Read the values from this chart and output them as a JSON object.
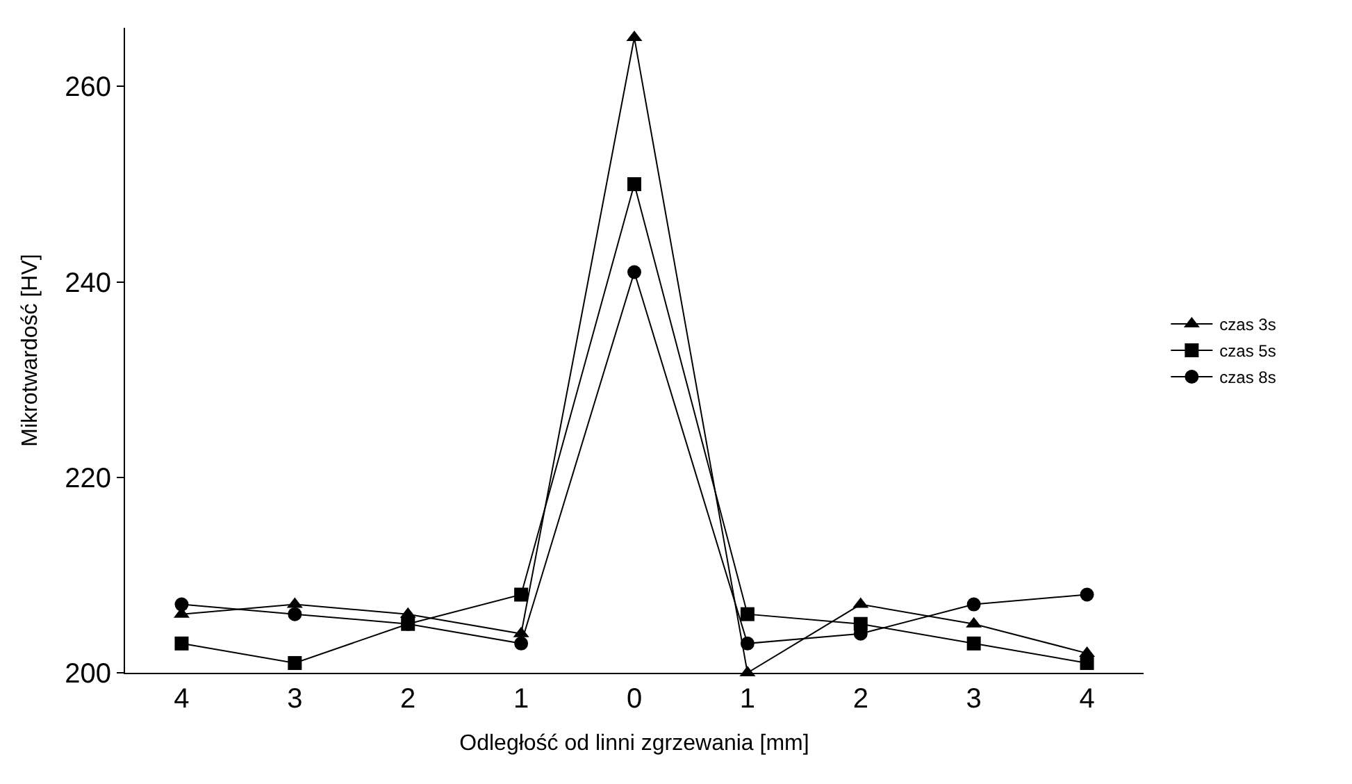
{
  "chart_data": {
    "type": "line",
    "xlabel": "Odległość od linni zgrzewania [mm]",
    "ylabel": "Mikrotwardość [HV]",
    "categories": [
      "4",
      "3",
      "2",
      "1",
      "0",
      "1",
      "2",
      "3",
      "4"
    ],
    "series": [
      {
        "name": "czas 3s",
        "color": "#000000",
        "marker": "triangle",
        "values": [
          206,
          207,
          206,
          204,
          265,
          200,
          207,
          205,
          202
        ]
      },
      {
        "name": "czas 5s",
        "color": "#000000",
        "marker": "square",
        "values": [
          203,
          201,
          205,
          208,
          250,
          206,
          205,
          203,
          201
        ]
      },
      {
        "name": "czas 8s",
        "color": "#000000",
        "marker": "circle",
        "values": [
          207,
          206,
          205,
          203,
          241,
          203,
          204,
          207,
          208
        ]
      }
    ],
    "ylim": [
      200,
      266
    ],
    "yticks": [
      200,
      220,
      240,
      260
    ],
    "legend": "right",
    "line_style": "solid"
  }
}
